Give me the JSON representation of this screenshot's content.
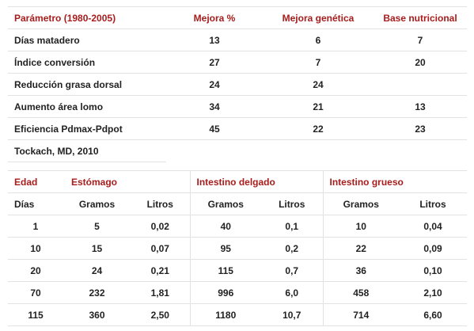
{
  "table1": {
    "headers": [
      "Parámetro (1980-2005)",
      "Mejora %",
      "Mejora genética",
      "Base nutricional"
    ],
    "rows": [
      [
        "Días matadero",
        "13",
        "6",
        "7"
      ],
      [
        "Índice conversión",
        "27",
        "7",
        "20"
      ],
      [
        "Reducción grasa dorsal",
        "24",
        "24",
        ""
      ],
      [
        "Aumento área lomo",
        "34",
        "21",
        "13"
      ],
      [
        "Eficiencia Pdmax-Pdpot",
        "45",
        "22",
        "23"
      ]
    ],
    "source": "Tockach, MD, 2010"
  },
  "table2": {
    "groups": [
      "Edad",
      "Estómago",
      "Intestino delgado",
      "Intestino grueso"
    ],
    "subheaders": [
      "Días",
      "Gramos",
      "Litros",
      "Gramos",
      "Litros",
      "Gramos",
      "Litros"
    ],
    "rows": [
      [
        "1",
        "5",
        "0,02",
        "40",
        "0,1",
        "10",
        "0,04"
      ],
      [
        "10",
        "15",
        "0,07",
        "95",
        "0,2",
        "22",
        "0,09"
      ],
      [
        "20",
        "24",
        "0,21",
        "115",
        "0,7",
        "36",
        "0,10"
      ],
      [
        "70",
        "232",
        "1,81",
        "996",
        "6,0",
        "458",
        "2,10"
      ],
      [
        "115",
        "360",
        "2,50",
        "1180",
        "10,7",
        "714",
        "6,60"
      ]
    ]
  }
}
